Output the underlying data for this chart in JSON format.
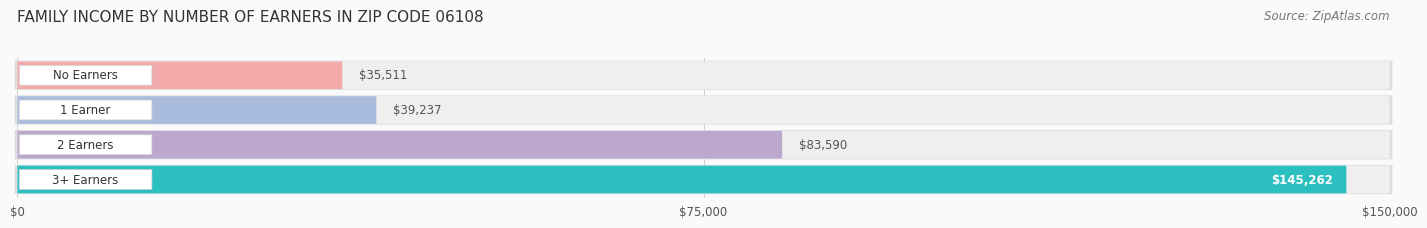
{
  "title": "FAMILY INCOME BY NUMBER OF EARNERS IN ZIP CODE 06108",
  "source": "Source: ZipAtlas.com",
  "categories": [
    "No Earners",
    "1 Earner",
    "2 Earners",
    "3+ Earners"
  ],
  "values": [
    35511,
    39237,
    83590,
    145262
  ],
  "value_labels": [
    "$35,511",
    "$39,237",
    "$83,590",
    "$145,262"
  ],
  "bar_colors": [
    "#F2AAAA",
    "#AABCDE",
    "#BBA8CC",
    "#2BBFC0"
  ],
  "bar_bg_color": "#EFEFEF",
  "bar_border_color": "#DDDDDD",
  "xlim": [
    0,
    150000
  ],
  "xticks": [
    0,
    75000,
    150000
  ],
  "xtick_labels": [
    "$0",
    "$75,000",
    "$150,000"
  ],
  "background_color": "#FAFAFA",
  "title_fontsize": 11,
  "source_fontsize": 8.5,
  "label_fontsize": 8.5,
  "value_fontsize": 8.5,
  "value_label_color_last": "#FFFFFF",
  "value_label_color_other": "#555555",
  "pill_bg_color": "#FFFFFF",
  "bar_height": 0.7,
  "bar_gap": 0.18
}
